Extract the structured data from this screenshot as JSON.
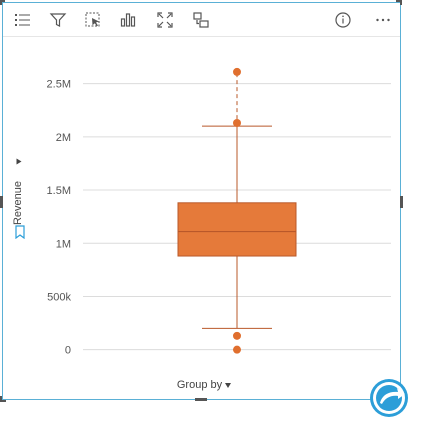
{
  "toolbar": {
    "left_icons": [
      "legend-list-icon",
      "filter-icon",
      "selection-icon",
      "visualization-type-icon",
      "maximize-icon",
      "flip-card-icon"
    ],
    "right_icons": [
      "info-icon",
      "more-options-icon"
    ]
  },
  "axis": {
    "y_title": "Revenue",
    "x_title": "Group by"
  },
  "colors": {
    "box_fill": "#e57a3a",
    "box_stroke": "#b9582a",
    "point": "#e06f2e",
    "grid": "#dcdcdc",
    "card_border": "#5ab0d6",
    "fab": "#2c9ed8"
  },
  "chart_data": {
    "type": "box",
    "y_ticks": [
      {
        "value": 0,
        "label": "0"
      },
      {
        "value": 500000,
        "label": "500k"
      },
      {
        "value": 1000000,
        "label": "1M"
      },
      {
        "value": 1500000,
        "label": "1.5M"
      },
      {
        "value": 2000000,
        "label": "2M"
      },
      {
        "value": 2500000,
        "label": "2.5M"
      }
    ],
    "ylim": [
      -50000,
      2750000
    ],
    "whisker_low": 200000,
    "q1": 880000,
    "median": 1110000,
    "q3": 1380000,
    "whisker_high": 2100000,
    "outliers": [
      0,
      130000,
      2130000,
      2610000
    ],
    "grid": true
  }
}
